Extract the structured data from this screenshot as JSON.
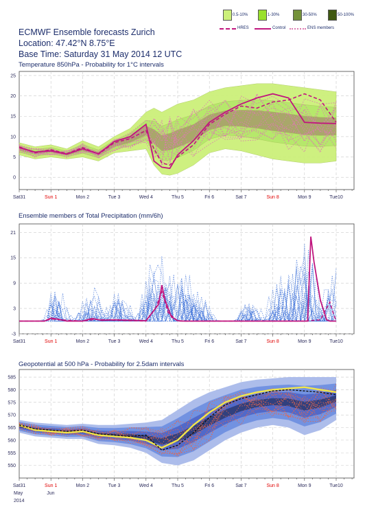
{
  "header": {
    "title": "ECMWF Ensemble forecasts Zurich",
    "location": "Location:  47.42°N 8.75°E",
    "base_time": "Base Time: Saturday 31 May 2014 12 UTC"
  },
  "legend": {
    "items": [
      {
        "label": "0.5-10%",
        "color": "#ccf07a"
      },
      {
        "label": "1-30%",
        "color": "#99e02c"
      },
      {
        "label": "30-50%",
        "color": "#74923a"
      },
      {
        "label": "50-100%",
        "color": "#3f5812"
      }
    ],
    "lines": [
      {
        "label": "HRES",
        "color": "#c0157e",
        "style": "dashed"
      },
      {
        "label": "Control",
        "color": "#c0157e",
        "style": "solid"
      },
      {
        "label": "ENS members",
        "color": "#dc7ab0",
        "style": "dotted"
      }
    ]
  },
  "x_axis": {
    "ticks": [
      "Sat31",
      "Sun 1",
      "Mon 2",
      "Tue 3",
      "Wed 4",
      "Thu 5",
      "Fri 6",
      "Sat 7",
      "Sun 8",
      "Mon 9",
      "Tue10"
    ],
    "red_ticks": [
      "Sun 1",
      "Sun 8"
    ],
    "footer": [
      "May",
      "Jun",
      "2014"
    ]
  },
  "chart_data": [
    {
      "type": "area",
      "title": "Temperature 850hPa - Probability for 1°C intervals",
      "ylim": [
        -3,
        26
      ],
      "yticks": [
        0,
        5,
        10,
        15,
        20,
        25
      ],
      "x": [
        0,
        0.5,
        1,
        1.5,
        2,
        2.5,
        3,
        3.5,
        4,
        4.25,
        4.5,
        4.75,
        5,
        5.5,
        6,
        6.5,
        7,
        7.5,
        8,
        8.5,
        9,
        9.5,
        10
      ],
      "series": [
        {
          "name": "HRES",
          "values": [
            7.5,
            6.0,
            6.8,
            5.8,
            7.3,
            5.7,
            8.5,
            9.5,
            11.5,
            7.0,
            3.5,
            3.0,
            5.0,
            8.0,
            13.0,
            15.5,
            17.5,
            17.0,
            18.5,
            19.0,
            20.5,
            19.0,
            13.5
          ]
        },
        {
          "name": "Control",
          "values": [
            7.3,
            6.2,
            6.5,
            5.7,
            7.0,
            5.8,
            8.8,
            10.0,
            13.0,
            4.0,
            2.5,
            2.2,
            5.5,
            9.0,
            13.5,
            16.0,
            18.0,
            19.5,
            20.5,
            19.5,
            13.5,
            13.3,
            13.2
          ]
        }
      ],
      "band": {
        "upper": [
          8.5,
          7.5,
          8.0,
          7.0,
          9.0,
          7.5,
          10.0,
          12.0,
          16.0,
          17.0,
          16.0,
          17.0,
          18.0,
          19.0,
          21.0,
          22.0,
          22.5,
          23.0,
          23.0,
          22.5,
          22.0,
          21.5,
          21.0
        ],
        "lower": [
          5.5,
          4.5,
          5.0,
          4.5,
          5.0,
          4.0,
          6.0,
          6.5,
          7.0,
          3.0,
          0.8,
          0.5,
          1.0,
          3.0,
          6.0,
          7.0,
          6.5,
          5.5,
          4.5,
          4.0,
          3.5,
          3.5,
          4.0
        ]
      }
    },
    {
      "type": "line",
      "title": "Ensemble members of Total Precipitation (mm/6h)",
      "ylim": [
        -3,
        23
      ],
      "yticks": [
        -3,
        3,
        9,
        15,
        21
      ],
      "series": [
        {
          "name": "Control",
          "x": [
            0,
            0.8,
            1.0,
            1.2,
            1.5,
            2.0,
            2.3,
            2.6,
            3.0,
            3.5,
            4.0,
            4.4,
            4.5,
            4.6,
            4.8,
            5.0,
            5.2,
            7.0,
            8.0,
            8.5,
            8.8,
            9.1,
            9.2,
            9.3,
            9.5,
            9.7,
            9.8,
            10.0
          ],
          "values": [
            0,
            0,
            0.7,
            0.5,
            0,
            0,
            0.6,
            0.2,
            0.3,
            0.2,
            0.1,
            4.0,
            8.5,
            5.0,
            1.0,
            0.1,
            0,
            0,
            0,
            0,
            0,
            0,
            20.0,
            14.0,
            5.0,
            0.3,
            0,
            0
          ]
        },
        {
          "name": "HRES",
          "x": [
            0,
            0.8,
            1.0,
            1.3,
            2.0,
            2.4,
            3.0,
            4.0,
            4.3,
            4.5,
            4.7,
            5.0,
            7.0,
            9.0,
            9.5,
            9.8,
            9.9,
            10.0
          ],
          "values": [
            0,
            0,
            0.5,
            0.3,
            0,
            0.4,
            0.2,
            0,
            3.0,
            7.0,
            2.0,
            0,
            0,
            0,
            0.3,
            4.5,
            2.0,
            0
          ]
        }
      ]
    },
    {
      "type": "area",
      "title": "Geopotential at 500 hPa - Probability for 2.5dam intervals",
      "ylim": [
        545,
        588
      ],
      "yticks": [
        550,
        555,
        560,
        565,
        570,
        575,
        580,
        585
      ],
      "x": [
        0,
        0.5,
        1,
        1.5,
        2,
        2.5,
        3,
        3.5,
        4,
        4.5,
        5,
        5.5,
        6,
        6.5,
        7,
        7.5,
        8,
        8.5,
        9,
        9.5,
        10
      ],
      "series": [
        {
          "name": "HRES",
          "values": [
            566,
            564,
            563.5,
            563,
            563.5,
            562,
            561.5,
            561,
            560,
            557,
            560,
            566,
            571,
            575,
            577.5,
            579,
            580,
            580.5,
            581,
            580,
            579
          ]
        },
        {
          "name": "Control",
          "values": [
            566,
            564.5,
            564,
            563.5,
            564,
            562.5,
            562,
            561.5,
            562,
            556,
            558,
            563,
            569,
            574,
            576.5,
            578,
            579.5,
            580,
            579.5,
            579,
            578
          ]
        }
      ],
      "band": {
        "upper": [
          568,
          567,
          566.5,
          566,
          566.5,
          566,
          566,
          566.5,
          567,
          568,
          572,
          576,
          579,
          581,
          583,
          584,
          584.5,
          585,
          585,
          585,
          585
        ],
        "lower": [
          563,
          561.5,
          561,
          560.5,
          560.5,
          558.5,
          558,
          557,
          555,
          551,
          550,
          552,
          556,
          560,
          563,
          565,
          566,
          565,
          562,
          564,
          568
        ]
      }
    }
  ]
}
